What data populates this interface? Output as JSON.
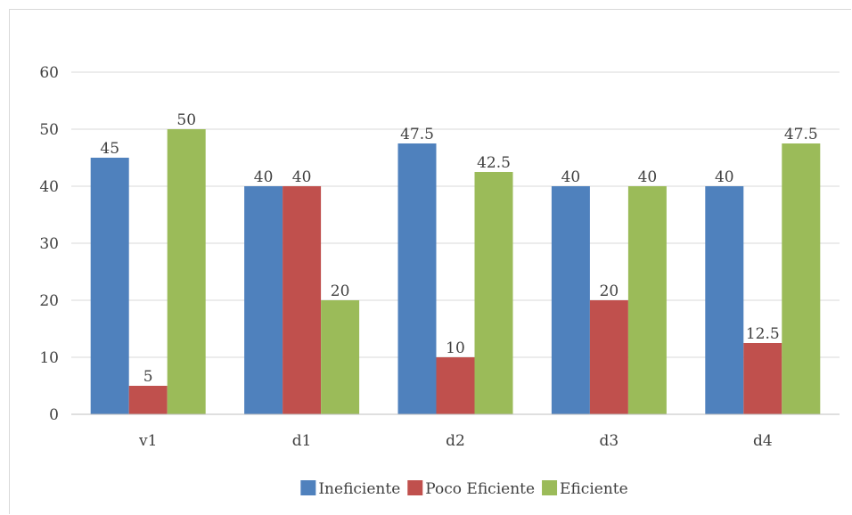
{
  "chart_data": {
    "type": "bar",
    "title": "",
    "xlabel": "",
    "ylabel": "",
    "categories": [
      "v1",
      "d1",
      "d2",
      "d3",
      "d4"
    ],
    "ylim": [
      0,
      60
    ],
    "yticks": [
      0,
      10,
      20,
      30,
      40,
      50,
      60
    ],
    "grid": true,
    "legend_position": "bottom",
    "series": [
      {
        "name": "Ineficiente",
        "color": "#4f81bd",
        "values": [
          45,
          40,
          47.5,
          40,
          40
        ]
      },
      {
        "name": "Poco Eficiente",
        "color": "#c0504d",
        "values": [
          5,
          40,
          10,
          20,
          12.5
        ]
      },
      {
        "name": "Eficiente",
        "color": "#9bbb59",
        "values": [
          50,
          20,
          42.5,
          40,
          47.5
        ]
      }
    ]
  }
}
